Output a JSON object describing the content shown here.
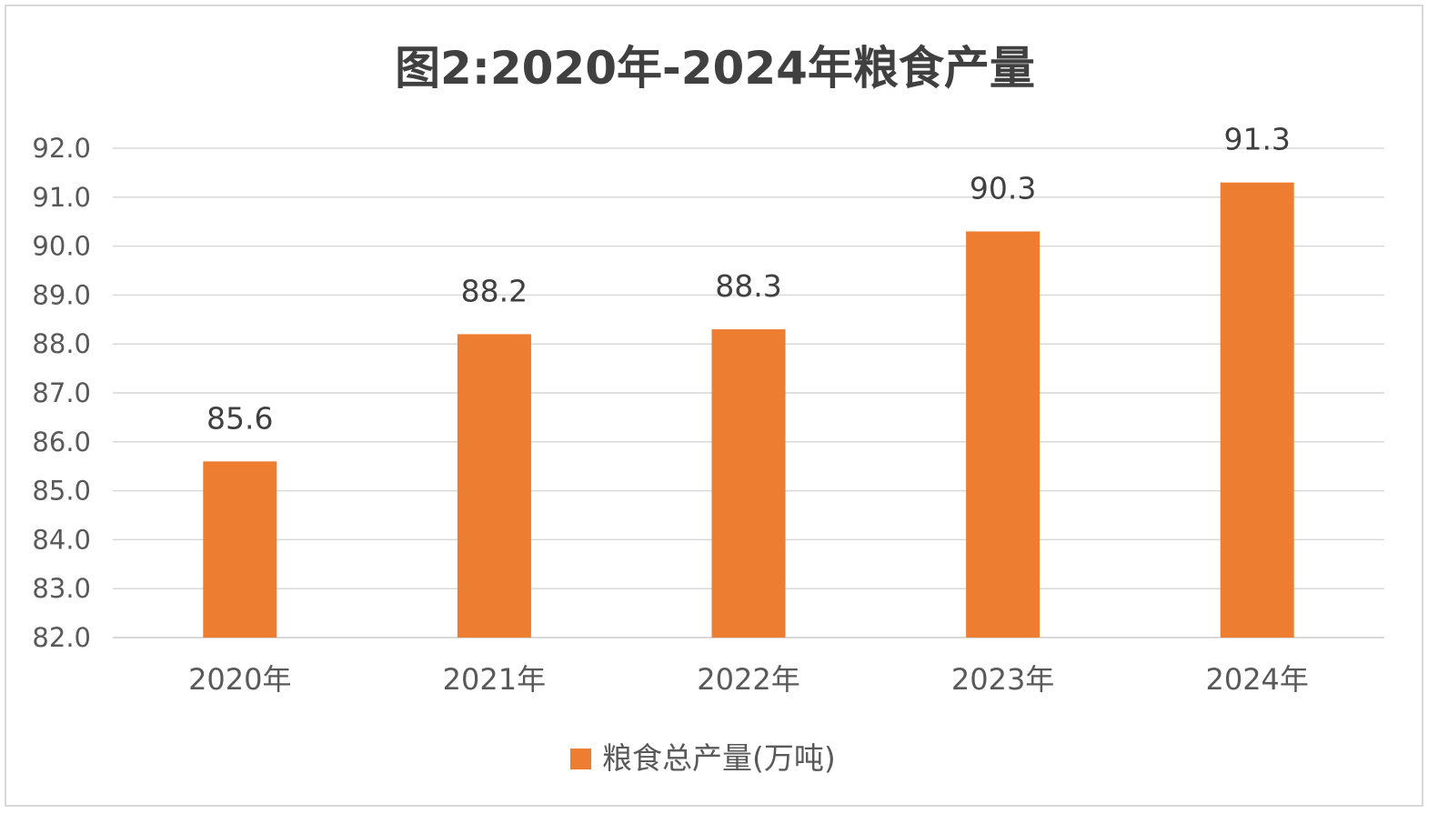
{
  "chart_data": {
    "type": "bar",
    "title": "图2:2020年-2024年粮食产量",
    "categories": [
      "2020年",
      "2021年",
      "2022年",
      "2023年",
      "2024年"
    ],
    "series": [
      {
        "name": "粮食总产量(万吨)",
        "values": [
          85.6,
          88.2,
          88.3,
          90.3,
          91.3
        ],
        "value_labels": [
          "85.6",
          "88.2",
          "88.3",
          "90.3",
          "91.3"
        ],
        "color": "#ED7D31"
      }
    ],
    "ylim": [
      82.0,
      92.0
    ],
    "yticks": [
      "82.0",
      "83.0",
      "84.0",
      "85.0",
      "86.0",
      "87.0",
      "88.0",
      "89.0",
      "90.0",
      "91.0",
      "92.0"
    ],
    "grid": true,
    "legend": "bottom",
    "gridline_color": "#D9D9D9"
  }
}
